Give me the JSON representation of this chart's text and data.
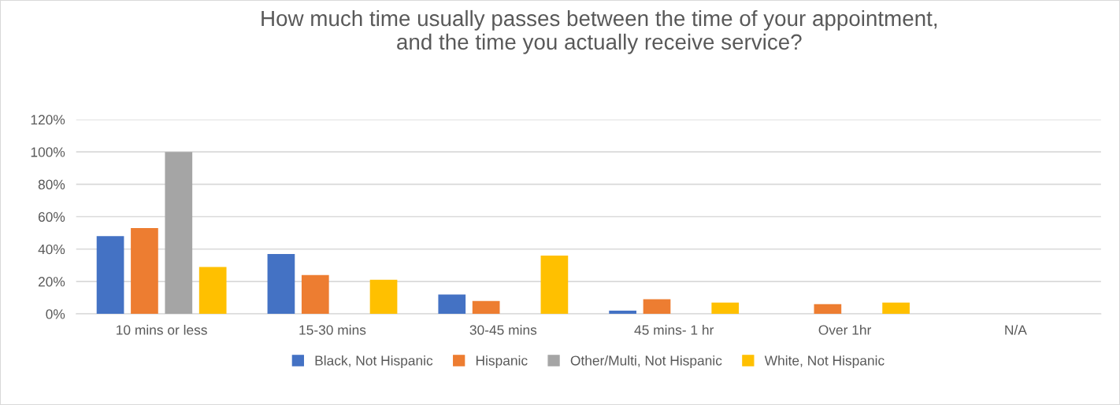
{
  "chart_data": {
    "type": "bar",
    "title": "How much time usually passes between the time of your appointment,\nand the time you actually receive service?",
    "categories": [
      "10 mins or less",
      "15-30 mins",
      "30-45 mins",
      "45 mins- 1 hr",
      "Over 1hr",
      "N/A"
    ],
    "series": [
      {
        "name": "Black, Not Hispanic",
        "color": "#4472c4",
        "values": [
          48,
          37,
          12,
          2,
          0,
          0
        ]
      },
      {
        "name": "Hispanic",
        "color": "#ed7d31",
        "values": [
          53,
          24,
          8,
          9,
          6,
          0
        ]
      },
      {
        "name": "Other/Multi, Not Hispanic",
        "color": "#a5a5a5",
        "values": [
          100,
          0,
          0,
          0,
          0,
          0
        ]
      },
      {
        "name": "White, Not Hispanic",
        "color": "#ffc000",
        "values": [
          29,
          21,
          36,
          7,
          7,
          0
        ]
      }
    ],
    "ylim": [
      0,
      120
    ],
    "yticks": [
      {
        "value": 0,
        "label": "0%"
      },
      {
        "value": 20,
        "label": "20%"
      },
      {
        "value": 40,
        "label": "40%"
      },
      {
        "value": 60,
        "label": "60%"
      },
      {
        "value": 80,
        "label": "80%"
      },
      {
        "value": 100,
        "label": "100%"
      },
      {
        "value": 120,
        "label": "120%"
      }
    ],
    "grid": "y",
    "legend": "bottom"
  }
}
